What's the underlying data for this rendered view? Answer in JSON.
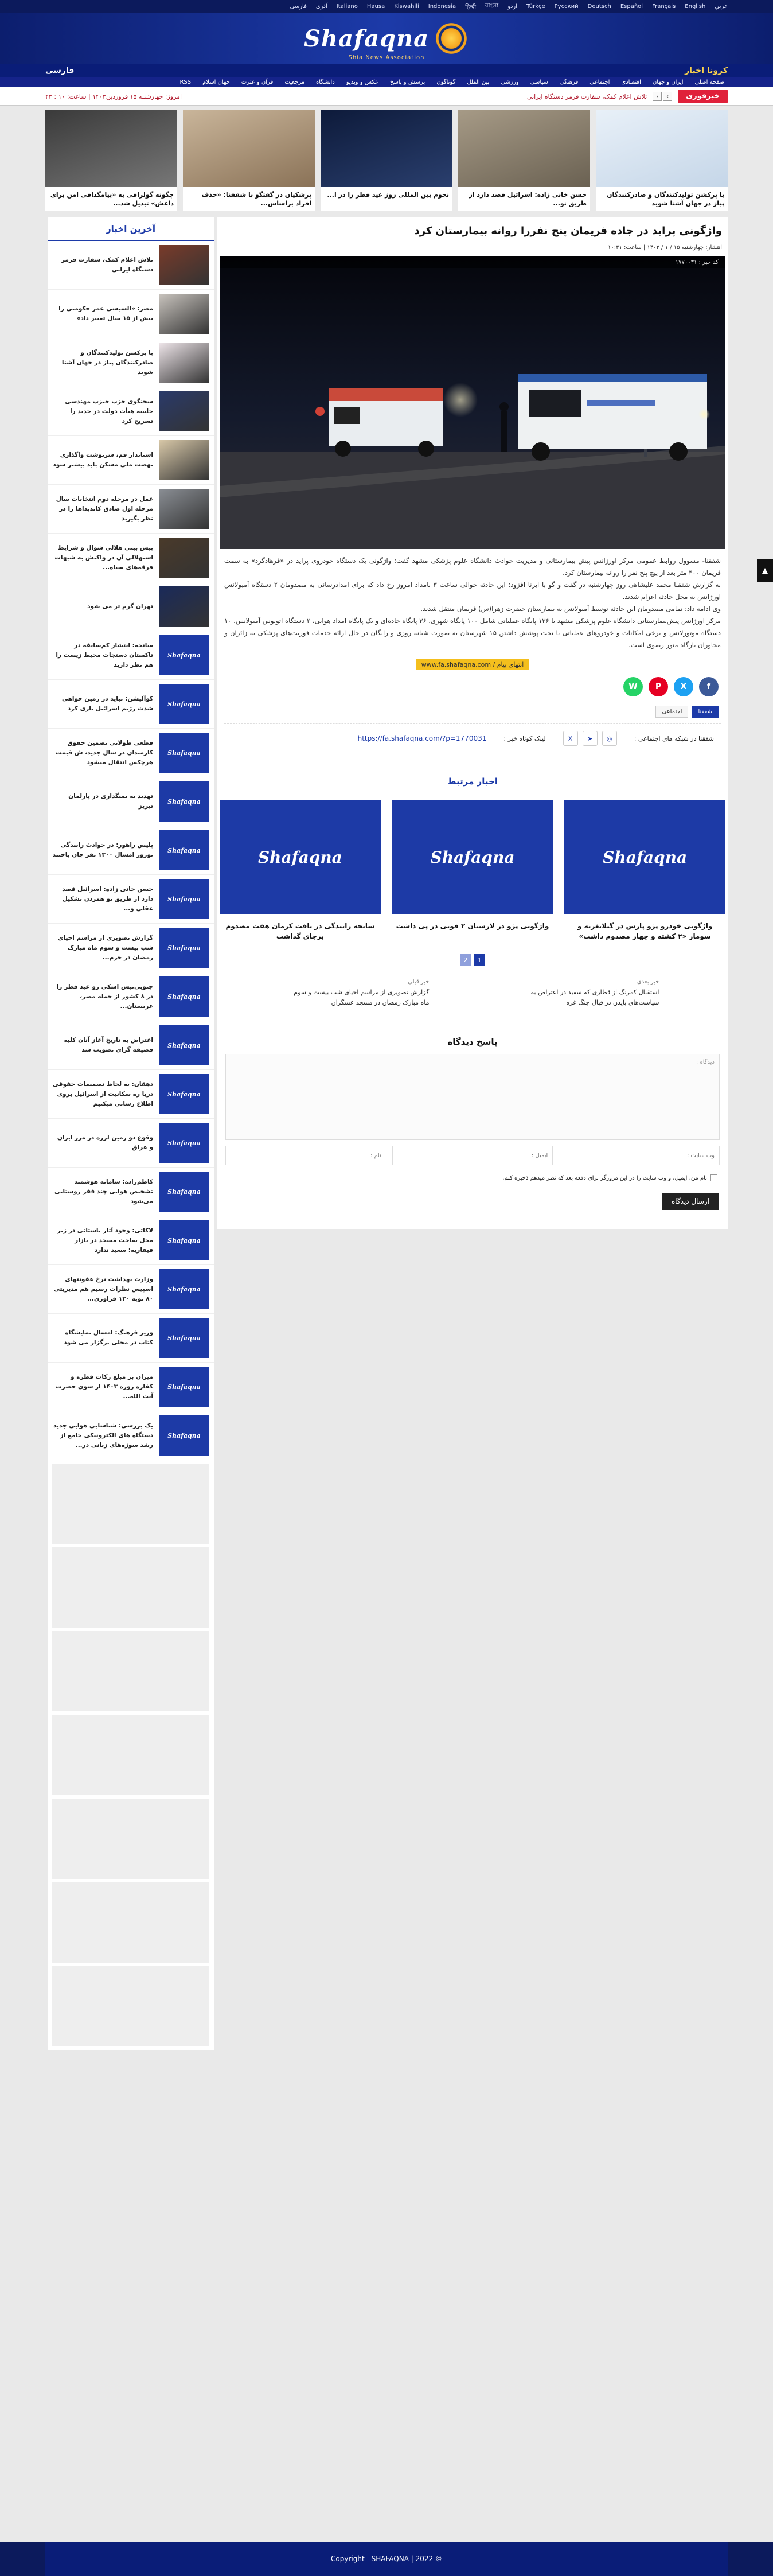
{
  "lang_bar": [
    "عربي",
    "English",
    "Français",
    "Español",
    "Deutsch",
    "Русский",
    "Türkçe",
    "اردو",
    "বাংলা",
    "हिन्दी",
    "Indonesia",
    "Kiswahili",
    "Hausa",
    "Italiano",
    "آذری",
    "فارسی"
  ],
  "logo": {
    "text": "Shafaqna",
    "tagline": "Shia News Association"
  },
  "topnav": {
    "covid": "کرونا اخبار",
    "farsi": "فارسی"
  },
  "mainmenu": [
    "صفحه اصلی",
    "ایران و جهان",
    "اقتصادی",
    "اجتماعی",
    "فرهنگی",
    "سیاسی",
    "ورزشی",
    "بین الملل",
    "گوناگون",
    "پرسش و پاسخ",
    "عکس و ویدیو",
    "دانشگاه",
    "مرجعیت",
    "قرآن و عترت",
    "جهان اسلام",
    "RSS"
  ],
  "breaking": {
    "label": "خبرفوری",
    "text": "تلاش اعلام کمک، سفارت قرمز دستگاه ایرانی",
    "date": "امروز: چهارشنبه ۱۵ فروردین۱۴۰۳ | ساعت: ۱۰ : ۴۳"
  },
  "slider": [
    {
      "caption": "با پرکشن تولیدکنندگان و صادرکنندگان پیاز در جهان آشنا شوید"
    },
    {
      "caption": "حسن خانی زاده: اسرائیل قصد دارد از طریق نو..."
    },
    {
      "caption": "نجوم بین المللی روز عید فطر را در ا..."
    },
    {
      "caption": "پزشکیان در گفتگو با شفقنا: «حذف افراد براساس..."
    },
    {
      "caption": "چگونه گولزاقی به «پیامگذاقی امن برای داعش» تبدیل شد..."
    }
  ],
  "article": {
    "title": "واژگونی پراید در جاده فریمان پنج نفررا روانه بیمارستان کرد",
    "published": "انتشار: چهارشنبه ۱۵ / ۱ / ۱۴۰۳ | ساعت: ۱۰:۳۱",
    "code_label": "کد خبر : ۱۷۷۰۰۳۱",
    "paragraph1": "شفقنا- مسوول روابط عمومی مرکز اورژانس پیش بیمارستانی و مدیریت حوادث دانشگاه علوم پزشکی مشهد گفت: واژگونی یک دستگاه خودروی پراید در «فرهادگرد» به سمت فریمان ۴۰۰ متر بعد از پیچ پنج نفر را روانه بیمارستان کرد.",
    "paragraph2": "به گزارش شفقنا محمد علیشاهی روز چهارشنبه در گفت و گو با ایرنا افزود: این حادثه حوالی ساعت ۳ بامداد امروز رخ داد که برای امدادرسانی به مصدومان ۲ دستگاه آمبولانس اورژانس به محل حادثه اعزام شدند.",
    "paragraph3": "وی ادامه داد: تمامی مصدومان این حادثه توسط آمبولانس به بیمارستان حضرت زهرا(س) فریمان منتقل شدند.",
    "paragraph4": "مرکز اورژانس پیش‌بیمارستانی دانشگاه علوم پزشکی مشهد با ۱۳۶ پایگاه عملیاتی شامل ۱۰۰ پایگاه شهری، ۳۶ پایگاه جاده‌ای و یک پایگاه امداد هوایی، ۲ دستگاه اتوبوس آمبولانس، ۱۰ دستگاه موتورلانس و برخی امکانات و خودروهای عملیاتی با تحت پوشش داشتن ۱۵ شهرستان به صورت شبانه روزی و رایگان در حال ارائه خدمات فوریت‌های پزشکی به زائران و مجاوران بارگاه منور رضوی است.",
    "end_tag": "انتهای پیام / www.fa.shafaqna.com"
  },
  "tags": [
    "شفقنا",
    "اجتماعی"
  ],
  "links": {
    "social_label": "شفقنا در شبکه های اجتماعی :",
    "short_label": "لینک کوتاه خبر :",
    "short_url": "https://fa.shafaqna.com/?p=1770031"
  },
  "related": {
    "title": "اخبار مرتبط",
    "cards": [
      {
        "caption": "واژگونی خودرو پژو پارس در گیلانغربه و سومار «۲ کشته و چهار مصدوم داشت»"
      },
      {
        "caption": "واژگونی پژو در لارستان ۲ فوتی در پی داشت"
      },
      {
        "caption": "سانحه رانندگی در بافت کرمان هفت مصدوم برجای گذاشت"
      }
    ],
    "pager": [
      "2",
      "1"
    ],
    "text_items": [
      {
        "small": "خبر بعدی",
        "text": "استقبال کمرنگ از قطاری که سفید در اعتراض به سیاست‌های بایدن در قبال جنگ غزه"
      },
      {
        "small": "خبر قبلی",
        "text": "گزارش تصویری از مراسم احیای شب بیست و سوم ماه مبارک رمضان در مسجد عسگران"
      }
    ]
  },
  "comment": {
    "title": "پاسخ دیدگاه",
    "textarea_placeholder": "دیدگاه :",
    "name_placeholder": "نام :",
    "email_placeholder": "ایمیل :",
    "site_placeholder": "وب سایت :",
    "remember": "نام من، ایمیل، و وب سایت را در این مرورگر برای دفعه بعد که نظر میدهم ذخیره کنم.",
    "submit": "ارسال دیدگاه"
  },
  "sidebar": {
    "title": "آخرین اخبار",
    "items": [
      {
        "caption": "تلاش اعلام کمک، سفارت قرمز دستگاه ایرانی"
      },
      {
        "caption": "مصر: «السیسی عمر حکومتی را بیش از ۱۵ سال تغییر داد»"
      },
      {
        "caption": "با پرکشن تولیدکنندگان و صادرکنندگان پیاز در جهان آشنا شوید"
      },
      {
        "caption": "سخنگوی حزب حیزب مهندسی جلسه هیأت دولت در جدید را تسریح کرد"
      },
      {
        "caption": "استاندار قم، سرنوشت واگذاری نهضت ملی مسکن باید بیشتر شود"
      },
      {
        "caption": "عمل در مرحله دوم انتخابات سال مرحله اول صادق کاندیداها را در نظر بگیرید"
      },
      {
        "caption": "پیش بینی هلالی شوال و شرایط استهلالی آن در واکنش به شبهات فرقه‌های سیاه..."
      },
      {
        "caption": "تهران گرم تر می شود"
      },
      {
        "caption": "سانحه: انتشار کم‌سابقه در تاکستان دستجات محیط زیست را هم نظر دارید"
      },
      {
        "caption": "کوآلیشن: نباید در زمین خواهی شدت رژیم اسرائیل باری کرد"
      },
      {
        "caption": "قطعی طولانی تضمین حقوق کارمندان در سال جدید، ش قیمت هرچکس انتقال میشود"
      },
      {
        "caption": "تهدید به بمبگذاری در پارلمان تبریز"
      },
      {
        "caption": "پلیس راهور: در حوادث رانندگی نوروز امسال ۱۳۰۰ نفر جان باختند"
      },
      {
        "caption": "حسن خانی زاده: اسرائیل قصد دارد از طریق نو همزدن تشکیل عقلی و..."
      },
      {
        "caption": "گزارش تصویری از مراسم احیای شب بیست و سوم ماه مبارک رمضان در حرم..."
      },
      {
        "caption": "جنوبی‌نیس اسکی رو عید فطر را در ۸ کشور از جمله مصر، عربستان..."
      },
      {
        "caption": "اعتراض به تاریخ آغاز آنان کلیه قضیفه گرای تصویب شد"
      },
      {
        "caption": "دهقان: به لحاظ تصمیمات حقوقی دربا ره سکانیت از اسرائیل بروی اطلاع رسانی میکنیم"
      },
      {
        "caption": "وقوع دو زمین لرزه در مرز ایران و عراق"
      },
      {
        "caption": "کاظم‌زاده: سامانه هوشمند تشخیص هوایی چند فقر روستایی می‌شود"
      },
      {
        "caption": "لاکاتی: وجود آثار باستانی در زیر محل ساخت مسجد در بازار قیقاریه: سعید ندارد"
      },
      {
        "caption": "وزارت بهداشت نرخ عفونتهای اسپیس نظرات رسیم هم مدیریتی ۸۰ نوبه ۱۳۰ فراوری..."
      },
      {
        "caption": "وزیر فرهنگ: امسال نمایشگاه کتاب در محلی برگزار می شود"
      },
      {
        "caption": "میزان بر مبلغ زکات فطره و کفاره روزه ۱۴۰۳ از سوی حضرت آیت الله..."
      },
      {
        "caption": "یک بررسی: شناسایی هوایی جدید دستگاه های الکترونیکی جامع از رشد سوژه‌های زبانی در..."
      }
    ]
  },
  "footer": {
    "text": "Copyright - SHAFAQNA | 2022 ©"
  },
  "colors": {
    "brand_blue": "#1c3aa8",
    "dark_navy": "#0c1a5c",
    "breaking_red": "#e0213a",
    "accent_yellow": "#f4bf1d"
  },
  "icons": {
    "whatsapp": "whatsapp-icon",
    "pinterest": "pinterest-icon",
    "twitter": "twitter-icon",
    "facebook": "facebook-icon",
    "instagram": "instagram-icon",
    "telegram": "telegram-icon",
    "x": "x-icon",
    "scroll_top": "chevron-up-icon"
  }
}
